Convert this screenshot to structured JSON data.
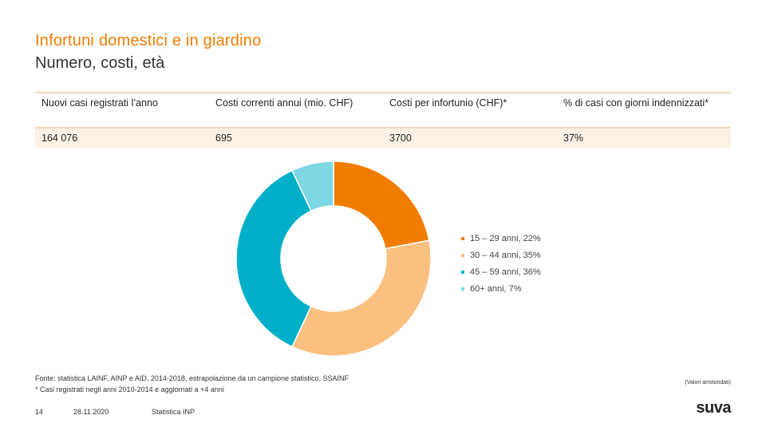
{
  "title": "Infortuni domestici e in giardino",
  "subtitle": "Numero, costi, età",
  "table": {
    "headers": [
      "Nuovi casi registrati l’anno",
      "Costi correnti annui (mio. CHF)",
      "Costi per infortunio (CHF)*",
      "% di casi con giorni indennizzati*"
    ],
    "values": [
      "164 076",
      "695",
      "3700",
      "37%"
    ]
  },
  "chart_data": {
    "type": "pie",
    "donut": true,
    "labels": [
      "15 – 29 anni, 22%",
      "30 – 44 anni, 35%",
      "45 – 59 anni, 36%",
      "60+ anni, 7%"
    ],
    "values": [
      22,
      35,
      36,
      7
    ],
    "colors": [
      "#f07d00",
      "#fbbf7f",
      "#00b0c9",
      "#7fd7e4"
    ],
    "legend_position": "right"
  },
  "footnote": {
    "line1": "Fonte: statistica LAINF, AINP e AID, 2014-2018, estrapolazione da un campione statistico, SSAINF",
    "line2": "* Casi registrati negli anni 2010-2014 e aggiornati a +4 anni"
  },
  "rounded_note": "(Valori arrotondati)",
  "footer": {
    "page": "14",
    "date": "28.11.2020",
    "label": "Statistica INP"
  },
  "logo": "suva"
}
